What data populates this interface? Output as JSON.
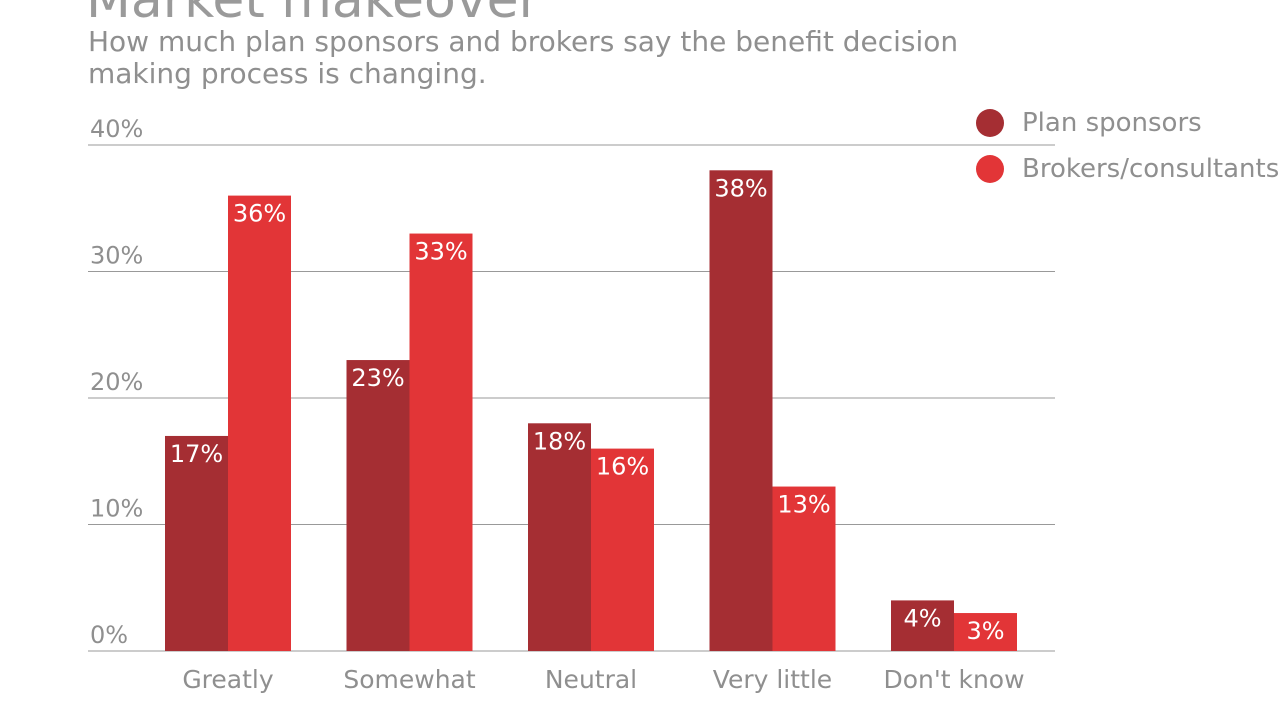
{
  "title": "Market makeover",
  "subtitle": "How much plan sponsors and brokers say the benefit decision making process is changing.",
  "colors": {
    "plan_sponsors": "#a52e33",
    "brokers_consultants": "#e23537",
    "grid": "#999999",
    "text": "#8f8f8f"
  },
  "chart_data": {
    "type": "bar",
    "categories": [
      "Greatly",
      "Somewhat",
      "Neutral",
      "Very little",
      "Don't know"
    ],
    "series": [
      {
        "name": "Plan sponsors",
        "values": [
          17,
          23,
          18,
          38,
          4
        ],
        "labels": [
          "17%",
          "23%",
          "18%",
          "38%",
          "4%"
        ]
      },
      {
        "name": "Brokers/consultants",
        "values": [
          36,
          33,
          16,
          13,
          3
        ],
        "labels": [
          "36%",
          "33%",
          "16%",
          "13%",
          "3%"
        ]
      }
    ],
    "yticks": [
      "0%",
      "10%",
      "20%",
      "30%",
      "40%"
    ],
    "ylim": [
      0,
      40
    ],
    "grid": true,
    "legend": "top-right"
  }
}
